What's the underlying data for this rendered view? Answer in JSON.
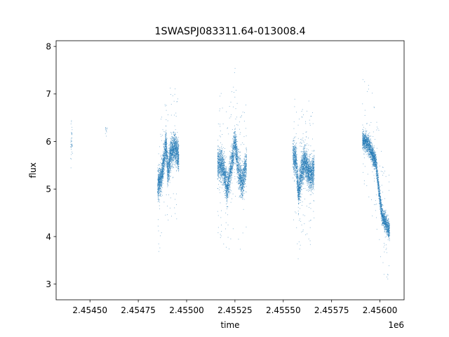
{
  "chart_data": {
    "type": "scatter",
    "title": "1SWASPJ083311.64-013008.4",
    "xlabel": "time",
    "ylabel": "flux",
    "x_offset_label": "1e6",
    "xlim": [
      2.454325,
      2.456125
    ],
    "ylim": [
      2.67,
      8.12
    ],
    "x_ticks": [
      2.4545,
      2.45475,
      2.455,
      2.45525,
      2.4555,
      2.45575,
      2.456
    ],
    "x_tick_labels": [
      "2.45450",
      "2.45475",
      "2.45500",
      "2.45525",
      "2.45550",
      "2.45575",
      "2.45600"
    ],
    "y_ticks": [
      3,
      4,
      5,
      6,
      7,
      8
    ],
    "y_tick_labels": [
      "3",
      "4",
      "5",
      "6",
      "7",
      "8"
    ],
    "grid": false,
    "marker_color": "#1f77b4",
    "clusters": [
      {
        "x_start": 2.4544,
        "x_end": 2.45441,
        "points": 40,
        "trend": [
          [
            0,
            6.0
          ]
        ],
        "spread": 0.35,
        "outlier_spread": 0.8
      },
      {
        "x_start": 2.45458,
        "x_end": 2.45459,
        "points": 12,
        "trend": [
          [
            0,
            6.25
          ]
        ],
        "spread": 0.08,
        "outlier_spread": 0.4
      },
      {
        "x_start": 2.45485,
        "x_end": 2.45496,
        "points": 2600,
        "trend": [
          [
            0,
            5.05
          ],
          [
            0.18,
            5.25
          ],
          [
            0.3,
            5.6
          ],
          [
            0.4,
            5.95
          ],
          [
            0.48,
            5.35
          ],
          [
            0.62,
            5.75
          ],
          [
            0.78,
            5.9
          ],
          [
            1,
            5.65
          ]
        ],
        "spread": 0.28,
        "outlier_spread": 1.5
      },
      {
        "x_start": 2.45516,
        "x_end": 2.45531,
        "points": 3000,
        "trend": [
          [
            0,
            5.55
          ],
          [
            0.2,
            5.45
          ],
          [
            0.33,
            5.0
          ],
          [
            0.48,
            5.5
          ],
          [
            0.6,
            6.0
          ],
          [
            0.72,
            5.4
          ],
          [
            0.85,
            5.1
          ],
          [
            1,
            5.6
          ]
        ],
        "spread": 0.3,
        "outlier_spread": 1.6
      },
      {
        "x_start": 2.45555,
        "x_end": 2.45566,
        "points": 2600,
        "trend": [
          [
            0,
            5.7
          ],
          [
            0.15,
            5.6
          ],
          [
            0.26,
            4.9
          ],
          [
            0.38,
            5.3
          ],
          [
            0.55,
            5.6
          ],
          [
            0.7,
            5.4
          ],
          [
            0.85,
            5.25
          ],
          [
            1,
            5.4
          ]
        ],
        "spread": 0.3,
        "outlier_spread": 1.5
      },
      {
        "x_start": 2.45591,
        "x_end": 2.45605,
        "points": 2600,
        "trend": [
          [
            0,
            6.05
          ],
          [
            0.2,
            5.95
          ],
          [
            0.35,
            5.75
          ],
          [
            0.5,
            5.55
          ],
          [
            0.6,
            5.0
          ],
          [
            0.72,
            4.45
          ],
          [
            0.85,
            4.3
          ],
          [
            1,
            4.1
          ]
        ],
        "spread": 0.18,
        "outlier_spread": 1.3
      }
    ]
  }
}
